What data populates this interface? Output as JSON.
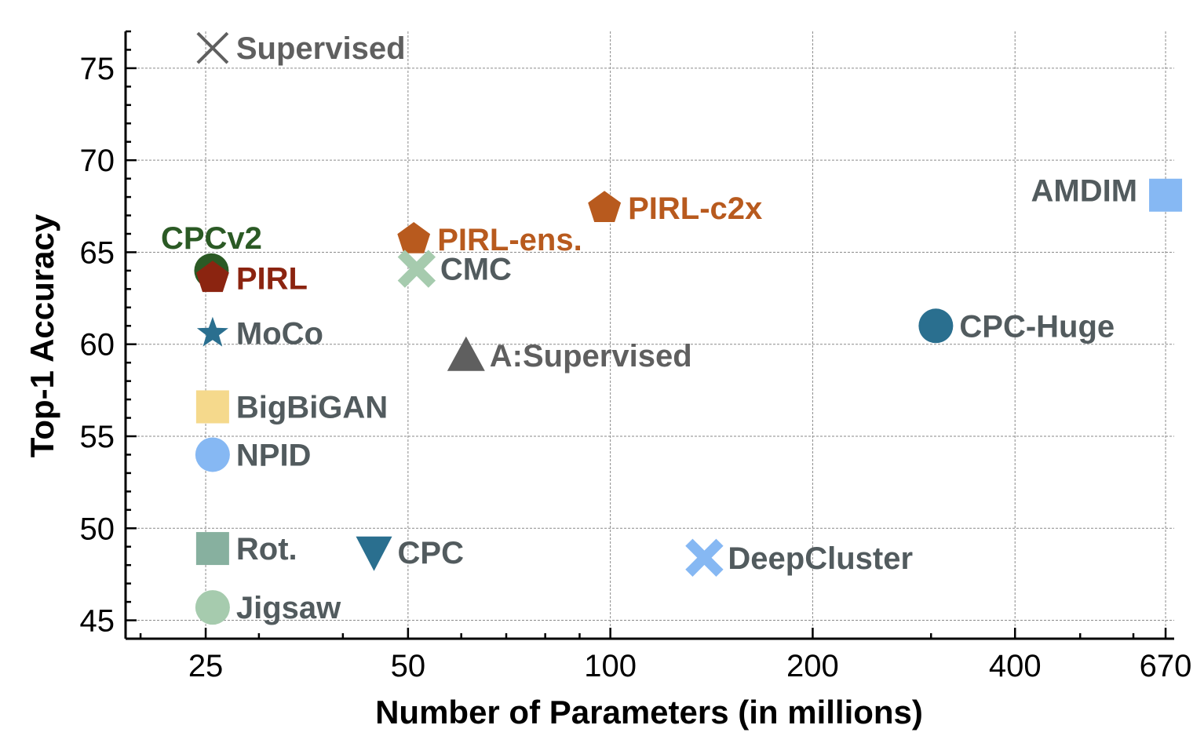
{
  "chart_data": {
    "type": "scatter",
    "title": "",
    "xlabel": "Number of Parameters (in millions)",
    "ylabel": "Top-1 Accuracy",
    "xscale": "log",
    "xlim": [
      19,
      690
    ],
    "ylim": [
      44,
      77
    ],
    "xticks": [
      25,
      50,
      100,
      200,
      400,
      670
    ],
    "yticks": [
      45,
      50,
      55,
      60,
      65,
      70,
      75
    ],
    "grid": true,
    "points": [
      {
        "label": "Supervised",
        "x": 25.6,
        "y": 76.1,
        "marker": "x-thin",
        "color": "#5f5f5f",
        "label_color": "#5f5f5f",
        "label_pos": "right"
      },
      {
        "label": "CPCv2",
        "x": 25.5,
        "y": 64.0,
        "marker": "circle",
        "color": "#2b5a25",
        "label_color": "#2b5a25",
        "label_pos": "above-small"
      },
      {
        "label": "PIRL",
        "x": 25.6,
        "y": 63.6,
        "marker": "pentagon",
        "color": "#8b2410",
        "label_color": "#8b2410",
        "label_pos": "right"
      },
      {
        "label": "MoCo",
        "x": 25.6,
        "y": 60.6,
        "marker": "star",
        "color": "#2a6f8f",
        "label_color": "#525b5e",
        "label_pos": "right"
      },
      {
        "label": "BigBiGAN",
        "x": 25.6,
        "y": 56.6,
        "marker": "square",
        "color": "#f5d98c",
        "label_color": "#525b5e",
        "label_pos": "right"
      },
      {
        "label": "NPID",
        "x": 25.6,
        "y": 54.0,
        "marker": "circle",
        "color": "#86b8f3",
        "label_color": "#525b5e",
        "label_pos": "right"
      },
      {
        "label": "Rot.",
        "x": 25.6,
        "y": 48.9,
        "marker": "square",
        "color": "#87b09f",
        "label_color": "#525b5e",
        "label_pos": "right"
      },
      {
        "label": "Jigsaw",
        "x": 25.6,
        "y": 45.7,
        "marker": "circle",
        "color": "#a6cbae",
        "label_color": "#525b5e",
        "label_pos": "right"
      },
      {
        "label": "CPC",
        "x": 44.5,
        "y": 48.7,
        "marker": "triangle-down",
        "color": "#2a6f8f",
        "label_color": "#525b5e",
        "label_pos": "right"
      },
      {
        "label": "PIRL-ens.",
        "x": 51.0,
        "y": 65.7,
        "marker": "pentagon",
        "color": "#b85a1e",
        "label_color": "#b85a1e",
        "label_pos": "right"
      },
      {
        "label": "CMC",
        "x": 51.5,
        "y": 64.1,
        "marker": "x-thick",
        "color": "#a6cbae",
        "label_color": "#525b5e",
        "label_pos": "right"
      },
      {
        "label": "A:Supervised",
        "x": 61.0,
        "y": 59.4,
        "marker": "triangle-up",
        "color": "#5f5f5f",
        "label_color": "#5f5f5f",
        "label_pos": "right"
      },
      {
        "label": "PIRL-c2x",
        "x": 98.0,
        "y": 67.4,
        "marker": "pentagon",
        "color": "#b85a1e",
        "label_color": "#b85a1e",
        "label_pos": "right"
      },
      {
        "label": "DeepCluster",
        "x": 138.0,
        "y": 48.4,
        "marker": "x-thick",
        "color": "#86b8f3",
        "label_color": "#525b5e",
        "label_pos": "right"
      },
      {
        "label": "CPC-Huge",
        "x": 305.0,
        "y": 61.0,
        "marker": "circle",
        "color": "#2a6f8f",
        "label_color": "#525b5e",
        "label_pos": "right"
      },
      {
        "label": "AMDIM",
        "x": 670.0,
        "y": 68.1,
        "marker": "square",
        "color": "#86b8f3",
        "label_color": "#525b5e",
        "label_pos": "left"
      }
    ]
  }
}
